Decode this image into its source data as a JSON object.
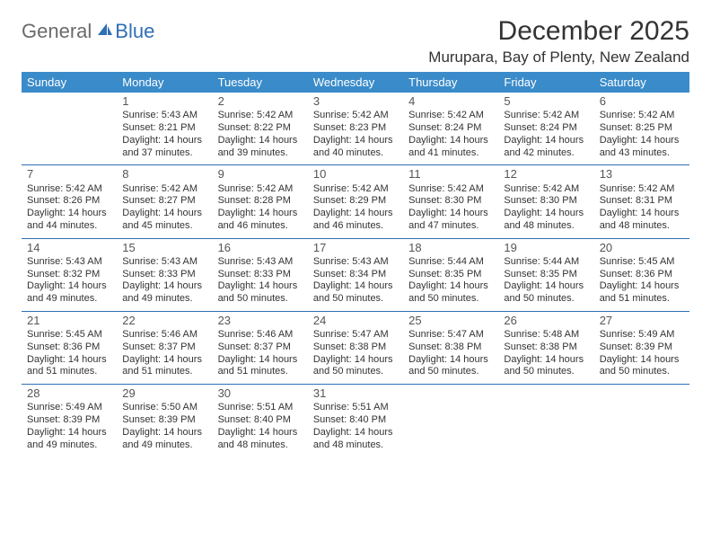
{
  "logo": {
    "part1": "General",
    "part2": "Blue"
  },
  "title": "December 2025",
  "location": "Murupara, Bay of Plenty, New Zealand",
  "colors": {
    "header_bg": "#3a8bc9",
    "header_text": "#ffffff",
    "row_border": "#2f6fb3",
    "logo_gray": "#6a6a6a",
    "logo_blue": "#2f6fb3",
    "body_text": "#333333",
    "background": "#ffffff"
  },
  "weekdays": [
    "Sunday",
    "Monday",
    "Tuesday",
    "Wednesday",
    "Thursday",
    "Friday",
    "Saturday"
  ],
  "weeks": [
    [
      null,
      {
        "d": "1",
        "sr": "Sunrise: 5:43 AM",
        "ss": "Sunset: 8:21 PM",
        "dl1": "Daylight: 14 hours",
        "dl2": "and 37 minutes."
      },
      {
        "d": "2",
        "sr": "Sunrise: 5:42 AM",
        "ss": "Sunset: 8:22 PM",
        "dl1": "Daylight: 14 hours",
        "dl2": "and 39 minutes."
      },
      {
        "d": "3",
        "sr": "Sunrise: 5:42 AM",
        "ss": "Sunset: 8:23 PM",
        "dl1": "Daylight: 14 hours",
        "dl2": "and 40 minutes."
      },
      {
        "d": "4",
        "sr": "Sunrise: 5:42 AM",
        "ss": "Sunset: 8:24 PM",
        "dl1": "Daylight: 14 hours",
        "dl2": "and 41 minutes."
      },
      {
        "d": "5",
        "sr": "Sunrise: 5:42 AM",
        "ss": "Sunset: 8:24 PM",
        "dl1": "Daylight: 14 hours",
        "dl2": "and 42 minutes."
      },
      {
        "d": "6",
        "sr": "Sunrise: 5:42 AM",
        "ss": "Sunset: 8:25 PM",
        "dl1": "Daylight: 14 hours",
        "dl2": "and 43 minutes."
      }
    ],
    [
      {
        "d": "7",
        "sr": "Sunrise: 5:42 AM",
        "ss": "Sunset: 8:26 PM",
        "dl1": "Daylight: 14 hours",
        "dl2": "and 44 minutes."
      },
      {
        "d": "8",
        "sr": "Sunrise: 5:42 AM",
        "ss": "Sunset: 8:27 PM",
        "dl1": "Daylight: 14 hours",
        "dl2": "and 45 minutes."
      },
      {
        "d": "9",
        "sr": "Sunrise: 5:42 AM",
        "ss": "Sunset: 8:28 PM",
        "dl1": "Daylight: 14 hours",
        "dl2": "and 46 minutes."
      },
      {
        "d": "10",
        "sr": "Sunrise: 5:42 AM",
        "ss": "Sunset: 8:29 PM",
        "dl1": "Daylight: 14 hours",
        "dl2": "and 46 minutes."
      },
      {
        "d": "11",
        "sr": "Sunrise: 5:42 AM",
        "ss": "Sunset: 8:30 PM",
        "dl1": "Daylight: 14 hours",
        "dl2": "and 47 minutes."
      },
      {
        "d": "12",
        "sr": "Sunrise: 5:42 AM",
        "ss": "Sunset: 8:30 PM",
        "dl1": "Daylight: 14 hours",
        "dl2": "and 48 minutes."
      },
      {
        "d": "13",
        "sr": "Sunrise: 5:42 AM",
        "ss": "Sunset: 8:31 PM",
        "dl1": "Daylight: 14 hours",
        "dl2": "and 48 minutes."
      }
    ],
    [
      {
        "d": "14",
        "sr": "Sunrise: 5:43 AM",
        "ss": "Sunset: 8:32 PM",
        "dl1": "Daylight: 14 hours",
        "dl2": "and 49 minutes."
      },
      {
        "d": "15",
        "sr": "Sunrise: 5:43 AM",
        "ss": "Sunset: 8:33 PM",
        "dl1": "Daylight: 14 hours",
        "dl2": "and 49 minutes."
      },
      {
        "d": "16",
        "sr": "Sunrise: 5:43 AM",
        "ss": "Sunset: 8:33 PM",
        "dl1": "Daylight: 14 hours",
        "dl2": "and 50 minutes."
      },
      {
        "d": "17",
        "sr": "Sunrise: 5:43 AM",
        "ss": "Sunset: 8:34 PM",
        "dl1": "Daylight: 14 hours",
        "dl2": "and 50 minutes."
      },
      {
        "d": "18",
        "sr": "Sunrise: 5:44 AM",
        "ss": "Sunset: 8:35 PM",
        "dl1": "Daylight: 14 hours",
        "dl2": "and 50 minutes."
      },
      {
        "d": "19",
        "sr": "Sunrise: 5:44 AM",
        "ss": "Sunset: 8:35 PM",
        "dl1": "Daylight: 14 hours",
        "dl2": "and 50 minutes."
      },
      {
        "d": "20",
        "sr": "Sunrise: 5:45 AM",
        "ss": "Sunset: 8:36 PM",
        "dl1": "Daylight: 14 hours",
        "dl2": "and 51 minutes."
      }
    ],
    [
      {
        "d": "21",
        "sr": "Sunrise: 5:45 AM",
        "ss": "Sunset: 8:36 PM",
        "dl1": "Daylight: 14 hours",
        "dl2": "and 51 minutes."
      },
      {
        "d": "22",
        "sr": "Sunrise: 5:46 AM",
        "ss": "Sunset: 8:37 PM",
        "dl1": "Daylight: 14 hours",
        "dl2": "and 51 minutes."
      },
      {
        "d": "23",
        "sr": "Sunrise: 5:46 AM",
        "ss": "Sunset: 8:37 PM",
        "dl1": "Daylight: 14 hours",
        "dl2": "and 51 minutes."
      },
      {
        "d": "24",
        "sr": "Sunrise: 5:47 AM",
        "ss": "Sunset: 8:38 PM",
        "dl1": "Daylight: 14 hours",
        "dl2": "and 50 minutes."
      },
      {
        "d": "25",
        "sr": "Sunrise: 5:47 AM",
        "ss": "Sunset: 8:38 PM",
        "dl1": "Daylight: 14 hours",
        "dl2": "and 50 minutes."
      },
      {
        "d": "26",
        "sr": "Sunrise: 5:48 AM",
        "ss": "Sunset: 8:38 PM",
        "dl1": "Daylight: 14 hours",
        "dl2": "and 50 minutes."
      },
      {
        "d": "27",
        "sr": "Sunrise: 5:49 AM",
        "ss": "Sunset: 8:39 PM",
        "dl1": "Daylight: 14 hours",
        "dl2": "and 50 minutes."
      }
    ],
    [
      {
        "d": "28",
        "sr": "Sunrise: 5:49 AM",
        "ss": "Sunset: 8:39 PM",
        "dl1": "Daylight: 14 hours",
        "dl2": "and 49 minutes."
      },
      {
        "d": "29",
        "sr": "Sunrise: 5:50 AM",
        "ss": "Sunset: 8:39 PM",
        "dl1": "Daylight: 14 hours",
        "dl2": "and 49 minutes."
      },
      {
        "d": "30",
        "sr": "Sunrise: 5:51 AM",
        "ss": "Sunset: 8:40 PM",
        "dl1": "Daylight: 14 hours",
        "dl2": "and 48 minutes."
      },
      {
        "d": "31",
        "sr": "Sunrise: 5:51 AM",
        "ss": "Sunset: 8:40 PM",
        "dl1": "Daylight: 14 hours",
        "dl2": "and 48 minutes."
      },
      null,
      null,
      null
    ]
  ]
}
